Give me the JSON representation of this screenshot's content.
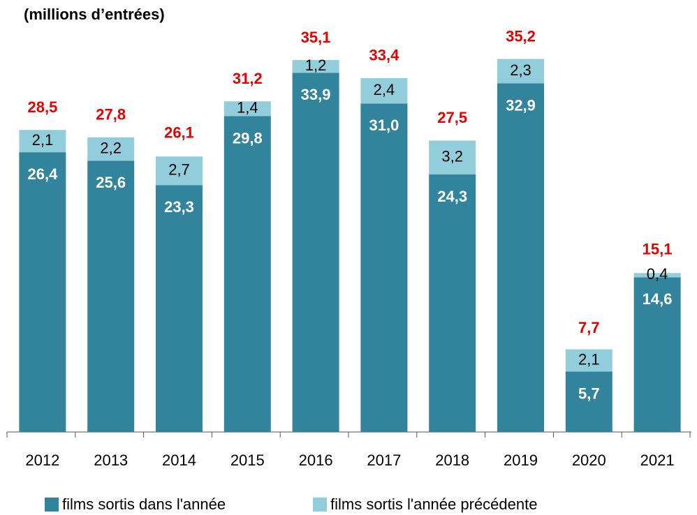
{
  "chart_data": {
    "type": "stacked_bar",
    "title": "(millions d’entrées)",
    "categories": [
      "2012",
      "2013",
      "2014",
      "2015",
      "2016",
      "2017",
      "2018",
      "2019",
      "2020",
      "2021"
    ],
    "series": [
      {
        "name": "films sortis dans l'année",
        "color": "#31849b",
        "values": [
          26.4,
          25.6,
          23.3,
          29.8,
          33.9,
          31.0,
          24.3,
          32.9,
          5.7,
          14.6
        ],
        "value_labels": [
          "26,4",
          "25,6",
          "23,3",
          "29,8",
          "33,9",
          "31,0",
          "24,3",
          "32,9",
          "5,7",
          "14,6"
        ]
      },
      {
        "name": "films sortis l'année précédente",
        "color": "#92cddc",
        "values": [
          2.1,
          2.2,
          2.7,
          1.4,
          1.2,
          2.4,
          3.2,
          2.3,
          2.1,
          0.4
        ],
        "value_labels": [
          "2,1",
          "2,2",
          "2,7",
          "1,4",
          "1,2",
          "2,4",
          "3,2",
          "2,3",
          "2,1",
          "0,4"
        ]
      }
    ],
    "totals": {
      "color": "#e60000",
      "values": [
        28.5,
        27.8,
        26.1,
        31.2,
        35.1,
        33.4,
        27.5,
        35.2,
        7.7,
        15.1
      ],
      "value_labels": [
        "28,5",
        "27,8",
        "26,1",
        "31,2",
        "35,1",
        "33,4",
        "27,5",
        "35,2",
        "7,7",
        "15,1"
      ]
    },
    "ylim": [
      0,
      38
    ],
    "legend": "bottom"
  }
}
